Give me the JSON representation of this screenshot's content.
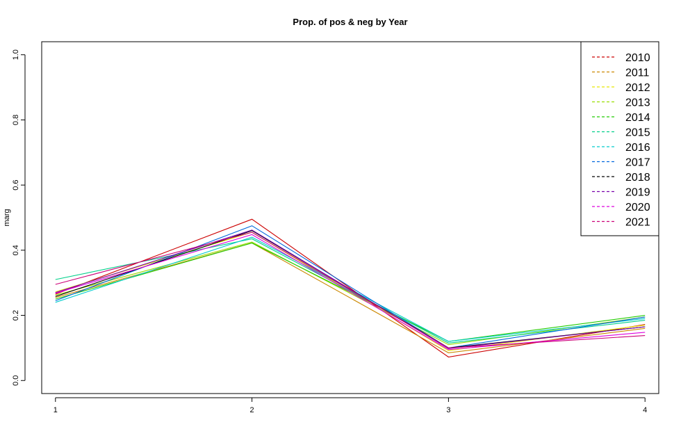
{
  "chart_data": {
    "type": "line",
    "title": "Prop. of pos & neg by Year",
    "xlabel": "",
    "ylabel": "marg",
    "x": [
      1,
      2,
      3,
      4
    ],
    "xlim": [
      0.93,
      4.07
    ],
    "ylim": [
      -0.04,
      1.04
    ],
    "xticks": [
      1,
      2,
      3,
      4
    ],
    "yticks": [
      "0.0",
      "0.2",
      "0.4",
      "0.6",
      "0.8",
      "1.0"
    ],
    "grid": false,
    "legend_position": "top-right",
    "series": [
      {
        "name": "2010",
        "color": "#cc0000",
        "values": [
          0.265,
          0.495,
          0.072,
          0.172
        ]
      },
      {
        "name": "2011",
        "color": "#cc8800",
        "values": [
          0.255,
          0.422,
          0.085,
          0.16
        ]
      },
      {
        "name": "2012",
        "color": "#e8e800",
        "values": [
          0.272,
          0.455,
          0.092,
          0.17
        ]
      },
      {
        "name": "2013",
        "color": "#99dd00",
        "values": [
          0.262,
          0.425,
          0.11,
          0.195
        ]
      },
      {
        "name": "2014",
        "color": "#22cc00",
        "values": [
          0.25,
          0.422,
          0.12,
          0.2
        ]
      },
      {
        "name": "2015",
        "color": "#00d08a",
        "values": [
          0.31,
          0.435,
          0.115,
          0.185
        ]
      },
      {
        "name": "2016",
        "color": "#00cccc",
        "values": [
          0.24,
          0.44,
          0.12,
          0.19
        ]
      },
      {
        "name": "2017",
        "color": "#0066dd",
        "values": [
          0.245,
          0.475,
          0.1,
          0.195
        ]
      },
      {
        "name": "2018",
        "color": "#000000",
        "values": [
          0.258,
          0.46,
          0.1,
          0.165
        ]
      },
      {
        "name": "2019",
        "color": "#7700aa",
        "values": [
          0.27,
          0.462,
          0.098,
          0.165
        ]
      },
      {
        "name": "2020",
        "color": "#dd00dd",
        "values": [
          0.268,
          0.448,
          0.095,
          0.148
        ]
      },
      {
        "name": "2021",
        "color": "#cc0077",
        "values": [
          0.295,
          0.455,
          0.1,
          0.138
        ]
      }
    ]
  }
}
